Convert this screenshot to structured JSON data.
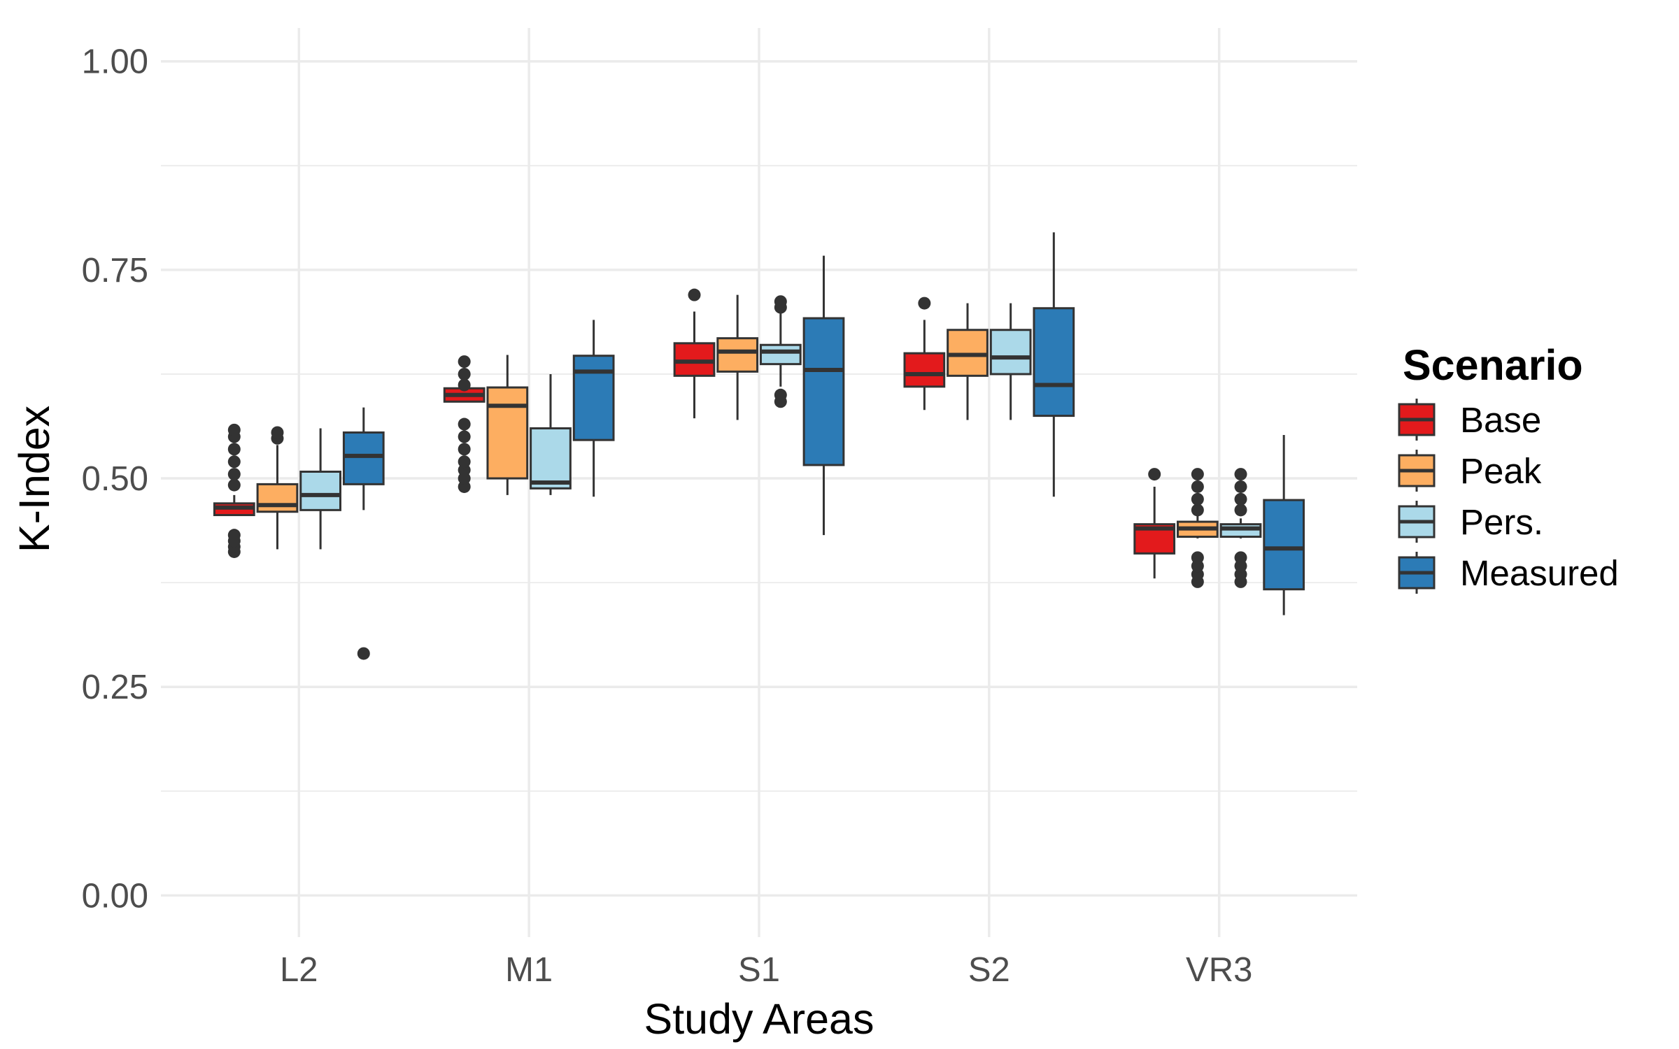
{
  "chart_data": {
    "type": "box",
    "xlabel": "Study Areas",
    "ylabel": "K-Index",
    "ylim": [
      -0.05,
      1.04
    ],
    "y_ticks": [
      "0.00",
      "0.25",
      "0.50",
      "0.75",
      "1.00"
    ],
    "grid": true,
    "legend_position": "right",
    "categories": [
      "L2",
      "M1",
      "S1",
      "S2",
      "VR3"
    ],
    "legend": {
      "title": "Scenario",
      "position": "right",
      "entries": [
        "Base",
        "Peak",
        "Pers.",
        "Measured"
      ]
    },
    "series": [
      {
        "name": "Base",
        "color": "#e31a1c",
        "boxes": [
          {
            "category": "L2",
            "lower_whisker": 0.456,
            "q1": 0.456,
            "median": 0.465,
            "q3": 0.47,
            "upper_whisker": 0.48,
            "outliers": [
              0.412,
              0.418,
              0.425,
              0.432,
              0.492,
              0.505,
              0.52,
              0.535,
              0.55,
              0.558
            ]
          },
          {
            "category": "M1",
            "lower_whisker": 0.592,
            "q1": 0.592,
            "median": 0.6,
            "q3": 0.608,
            "upper_whisker": 0.608,
            "outliers": [
              0.49,
              0.5,
              0.51,
              0.52,
              0.535,
              0.55,
              0.565,
              0.612,
              0.625,
              0.64
            ]
          },
          {
            "category": "S1",
            "lower_whisker": 0.572,
            "q1": 0.623,
            "median": 0.64,
            "q3": 0.662,
            "upper_whisker": 0.7,
            "outliers": [
              0.72
            ]
          },
          {
            "category": "S2",
            "lower_whisker": 0.582,
            "q1": 0.61,
            "median": 0.625,
            "q3": 0.65,
            "upper_whisker": 0.69,
            "outliers": [
              0.71
            ]
          },
          {
            "category": "VR3",
            "lower_whisker": 0.38,
            "q1": 0.41,
            "median": 0.44,
            "q3": 0.445,
            "upper_whisker": 0.49,
            "outliers": [
              0.505
            ]
          }
        ]
      },
      {
        "name": "Peak",
        "color": "#fdae61",
        "boxes": [
          {
            "category": "L2",
            "lower_whisker": 0.415,
            "q1": 0.46,
            "median": 0.468,
            "q3": 0.493,
            "upper_whisker": 0.54,
            "outliers": [
              0.548,
              0.555
            ]
          },
          {
            "category": "M1",
            "lower_whisker": 0.48,
            "q1": 0.5,
            "median": 0.587,
            "q3": 0.609,
            "upper_whisker": 0.648,
            "outliers": []
          },
          {
            "category": "S1",
            "lower_whisker": 0.57,
            "q1": 0.628,
            "median": 0.652,
            "q3": 0.668,
            "upper_whisker": 0.72,
            "outliers": []
          },
          {
            "category": "S2",
            "lower_whisker": 0.57,
            "q1": 0.623,
            "median": 0.648,
            "q3": 0.678,
            "upper_whisker": 0.71,
            "outliers": []
          },
          {
            "category": "VR3",
            "lower_whisker": 0.428,
            "q1": 0.43,
            "median": 0.44,
            "q3": 0.448,
            "upper_whisker": 0.455,
            "outliers": [
              0.376,
              0.385,
              0.395,
              0.405,
              0.462,
              0.475,
              0.49,
              0.505
            ]
          }
        ]
      },
      {
        "name": "Pers.",
        "color": "#abd9e9",
        "boxes": [
          {
            "category": "L2",
            "lower_whisker": 0.415,
            "q1": 0.462,
            "median": 0.48,
            "q3": 0.508,
            "upper_whisker": 0.56,
            "outliers": []
          },
          {
            "category": "M1",
            "lower_whisker": 0.48,
            "q1": 0.488,
            "median": 0.495,
            "q3": 0.56,
            "upper_whisker": 0.625,
            "outliers": []
          },
          {
            "category": "S1",
            "lower_whisker": 0.61,
            "q1": 0.637,
            "median": 0.652,
            "q3": 0.66,
            "upper_whisker": 0.7,
            "outliers": [
              0.592,
              0.6,
              0.705,
              0.712
            ]
          },
          {
            "category": "S2",
            "lower_whisker": 0.57,
            "q1": 0.625,
            "median": 0.645,
            "q3": 0.678,
            "upper_whisker": 0.71,
            "outliers": []
          },
          {
            "category": "VR3",
            "lower_whisker": 0.428,
            "q1": 0.43,
            "median": 0.44,
            "q3": 0.445,
            "upper_whisker": 0.452,
            "outliers": [
              0.376,
              0.385,
              0.395,
              0.405,
              0.462,
              0.475,
              0.49,
              0.505
            ]
          }
        ]
      },
      {
        "name": "Measured",
        "color": "#2c7bb6",
        "boxes": [
          {
            "category": "L2",
            "lower_whisker": 0.462,
            "q1": 0.493,
            "median": 0.527,
            "q3": 0.555,
            "upper_whisker": 0.585,
            "outliers": [
              0.29
            ]
          },
          {
            "category": "M1",
            "lower_whisker": 0.478,
            "q1": 0.546,
            "median": 0.628,
            "q3": 0.647,
            "upper_whisker": 0.69,
            "outliers": []
          },
          {
            "category": "S1",
            "lower_whisker": 0.432,
            "q1": 0.516,
            "median": 0.63,
            "q3": 0.692,
            "upper_whisker": 0.767,
            "outliers": []
          },
          {
            "category": "S2",
            "lower_whisker": 0.478,
            "q1": 0.575,
            "median": 0.612,
            "q3": 0.704,
            "upper_whisker": 0.795,
            "outliers": []
          },
          {
            "category": "VR3",
            "lower_whisker": 0.336,
            "q1": 0.367,
            "median": 0.416,
            "q3": 0.474,
            "upper_whisker": 0.552,
            "outliers": []
          }
        ]
      }
    ]
  }
}
